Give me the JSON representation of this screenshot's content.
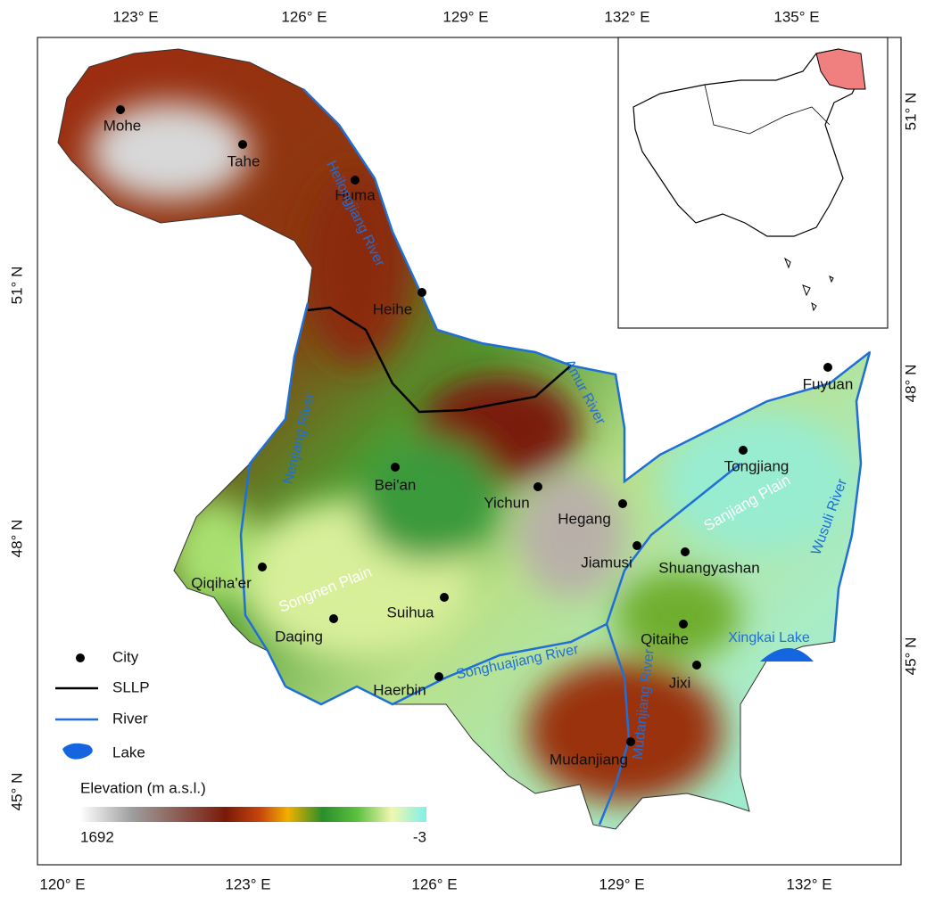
{
  "axes": {
    "top": [
      "123° E",
      "126° E",
      "129° E",
      "132° E",
      "135° E"
    ],
    "bottom": [
      "120° E",
      "123° E",
      "126° E",
      "129° E",
      "132° E"
    ],
    "left": [
      "51° N",
      "48° N",
      "45° N"
    ],
    "right": [
      "51° N",
      "48° N",
      "45° N"
    ]
  },
  "cities": [
    "Mohe",
    "Tahe",
    "Huma",
    "Heihe",
    "Fuyuan",
    "Tongjiang",
    "Bei'an",
    "Yichun",
    "Hegang",
    "Jiamusi",
    "Shuangyashan",
    "Qiqiha'er",
    "Suihua",
    "Daqing",
    "Qitaihe",
    "Jixi",
    "Haerbin",
    "Mudanjiang"
  ],
  "rivers": [
    "Heilongjiang River",
    "Nenjiang River",
    "Songhuajiang River",
    "Mudanjiang River",
    "Wusuli River",
    "Amur River"
  ],
  "plains": [
    "Songnen Plain",
    "Sanjiang Plain"
  ],
  "lake": "Xingkai Lake",
  "legend": [
    "City",
    "SLLP",
    "River",
    "Lake"
  ],
  "colorbar": {
    "title": "Elevation  (m a.s.l.)",
    "max": 1692,
    "min": -3
  }
}
